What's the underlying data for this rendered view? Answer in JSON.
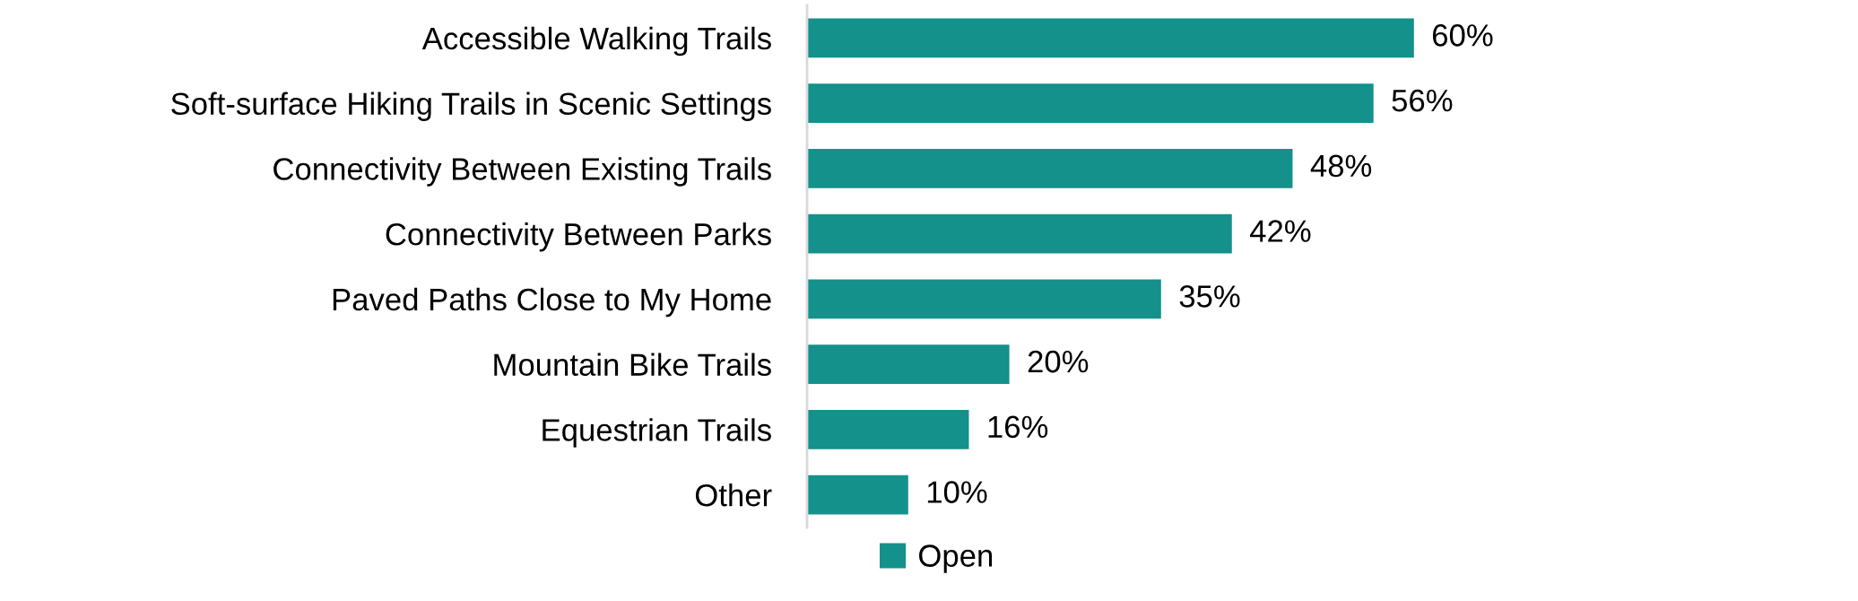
{
  "chart_data": {
    "type": "bar",
    "orientation": "horizontal",
    "categories": [
      "Accessible Walking Trails",
      "Soft-surface Hiking Trails in Scenic Settings",
      "Connectivity Between Existing Trails",
      "Connectivity Between Parks",
      "Paved Paths Close to My Home",
      "Mountain Bike Trails",
      "Equestrian Trails",
      "Other"
    ],
    "series": [
      {
        "name": "Open",
        "color": "#13918a",
        "values": [
          60,
          56,
          48,
          42,
          35,
          20,
          16,
          10
        ],
        "value_labels": [
          "60%",
          "56%",
          "48%",
          "42%",
          "35%",
          "20%",
          "16%",
          "10%"
        ]
      }
    ],
    "legend": "bottom",
    "grid": false,
    "tick_labels": "y"
  }
}
